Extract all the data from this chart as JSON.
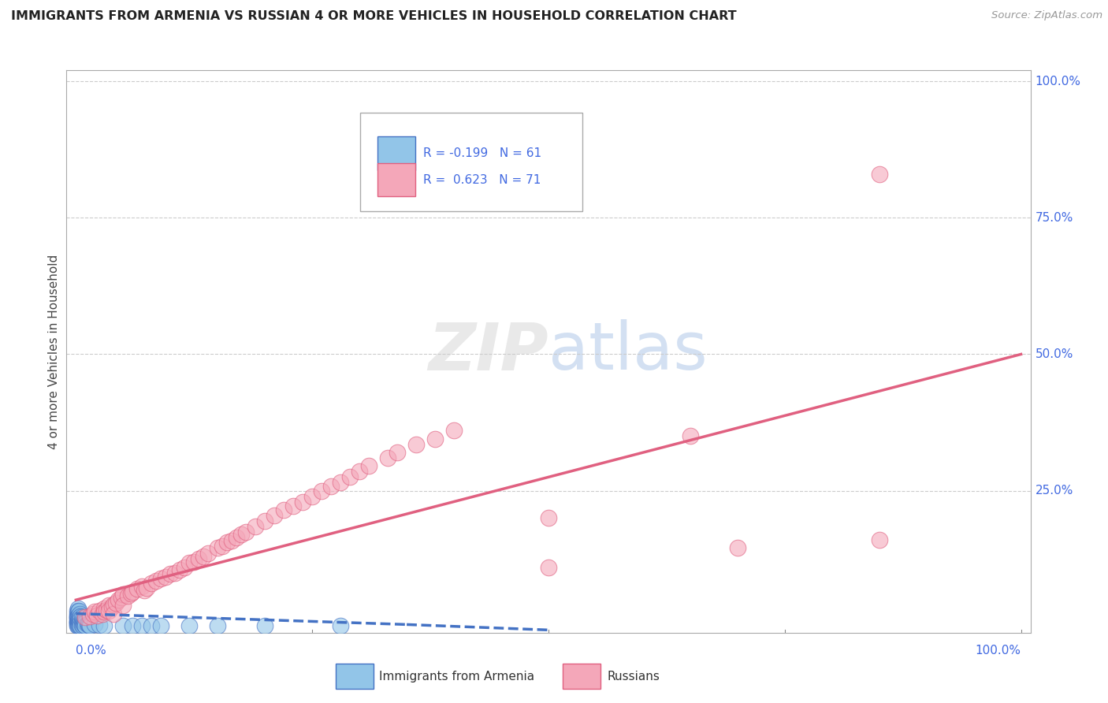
{
  "title": "IMMIGRANTS FROM ARMENIA VS RUSSIAN 4 OR MORE VEHICLES IN HOUSEHOLD CORRELATION CHART",
  "source": "Source: ZipAtlas.com",
  "ylabel": "4 or more Vehicles in Household",
  "color_armenia": "#92C5E8",
  "color_russia": "#F4A7B9",
  "line_color_armenia": "#4472C4",
  "line_color_russia": "#E06080",
  "background_color": "#FFFFFF",
  "russia_line_x0": 0.0,
  "russia_line_y0": 0.05,
  "russia_line_x1": 1.0,
  "russia_line_y1": 0.5,
  "armenia_line_x0": 0.0,
  "armenia_line_y0": 0.025,
  "armenia_line_x1": 0.35,
  "armenia_line_y1": 0.005,
  "armenia_pts_x": [
    0.001,
    0.001,
    0.001,
    0.001,
    0.001,
    0.001,
    0.001,
    0.001,
    0.001,
    0.001,
    0.002,
    0.002,
    0.002,
    0.002,
    0.002,
    0.002,
    0.002,
    0.002,
    0.003,
    0.003,
    0.003,
    0.003,
    0.003,
    0.003,
    0.004,
    0.004,
    0.004,
    0.004,
    0.004,
    0.005,
    0.005,
    0.005,
    0.005,
    0.006,
    0.006,
    0.006,
    0.007,
    0.007,
    0.007,
    0.008,
    0.008,
    0.009,
    0.009,
    0.01,
    0.01,
    0.012,
    0.013,
    0.014,
    0.015,
    0.02,
    0.025,
    0.03,
    0.05,
    0.06,
    0.07,
    0.08,
    0.09,
    0.12,
    0.15,
    0.2,
    0.28
  ],
  "armenia_pts_y": [
    0.03,
    0.025,
    0.02,
    0.018,
    0.015,
    0.012,
    0.01,
    0.008,
    0.005,
    0.003,
    0.035,
    0.028,
    0.022,
    0.018,
    0.012,
    0.008,
    0.005,
    0.003,
    0.03,
    0.022,
    0.015,
    0.01,
    0.006,
    0.003,
    0.025,
    0.018,
    0.012,
    0.007,
    0.003,
    0.02,
    0.015,
    0.008,
    0.003,
    0.018,
    0.01,
    0.004,
    0.015,
    0.008,
    0.003,
    0.012,
    0.005,
    0.01,
    0.004,
    0.008,
    0.003,
    0.006,
    0.005,
    0.004,
    0.003,
    0.005,
    0.004,
    0.003,
    0.003,
    0.003,
    0.002,
    0.002,
    0.002,
    0.002,
    0.002,
    0.002,
    0.002
  ],
  "russia_pts_x": [
    0.01,
    0.015,
    0.018,
    0.02,
    0.022,
    0.025,
    0.028,
    0.03,
    0.03,
    0.032,
    0.035,
    0.035,
    0.038,
    0.04,
    0.04,
    0.042,
    0.045,
    0.048,
    0.05,
    0.05,
    0.055,
    0.058,
    0.06,
    0.065,
    0.07,
    0.072,
    0.075,
    0.08,
    0.085,
    0.09,
    0.095,
    0.1,
    0.105,
    0.11,
    0.115,
    0.12,
    0.125,
    0.13,
    0.135,
    0.14,
    0.15,
    0.155,
    0.16,
    0.165,
    0.17,
    0.175,
    0.18,
    0.19,
    0.2,
    0.21,
    0.22,
    0.23,
    0.24,
    0.25,
    0.26,
    0.27,
    0.28,
    0.29,
    0.3,
    0.31,
    0.33,
    0.34,
    0.36,
    0.38,
    0.4,
    0.5,
    0.65,
    0.7,
    0.85,
    0.5,
    0.85
  ],
  "russia_pts_y": [
    0.018,
    0.02,
    0.025,
    0.028,
    0.022,
    0.03,
    0.025,
    0.035,
    0.028,
    0.032,
    0.04,
    0.03,
    0.038,
    0.042,
    0.025,
    0.045,
    0.05,
    0.055,
    0.06,
    0.04,
    0.058,
    0.062,
    0.065,
    0.07,
    0.075,
    0.068,
    0.072,
    0.08,
    0.085,
    0.09,
    0.092,
    0.098,
    0.1,
    0.105,
    0.11,
    0.118,
    0.12,
    0.125,
    0.13,
    0.135,
    0.145,
    0.148,
    0.155,
    0.158,
    0.165,
    0.17,
    0.175,
    0.185,
    0.195,
    0.205,
    0.215,
    0.222,
    0.23,
    0.24,
    0.25,
    0.258,
    0.265,
    0.275,
    0.285,
    0.295,
    0.31,
    0.32,
    0.335,
    0.345,
    0.36,
    0.2,
    0.35,
    0.145,
    0.83,
    0.11,
    0.16
  ],
  "xlim": [
    0.0,
    1.0
  ],
  "ylim": [
    0.0,
    1.0
  ]
}
